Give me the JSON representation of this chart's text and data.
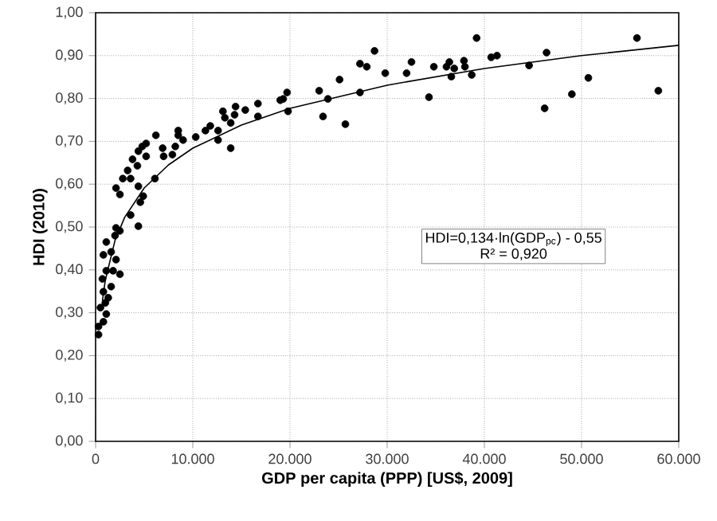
{
  "chart_data": {
    "type": "scatter",
    "xlabel": "GDP per capita (PPP) [US$, 2009]",
    "ylabel": "HDI (2010)",
    "xlim": [
      0,
      60000
    ],
    "ylim": [
      0,
      1
    ],
    "xticks": [
      0,
      {
        "value": 10000,
        "label": "10.000"
      },
      {
        "value": 20000,
        "label": "20.000"
      },
      {
        "value": 30000,
        "label": "30.000"
      },
      {
        "value": 40000,
        "label": "40.000"
      },
      {
        "value": 50000,
        "label": "50.000"
      },
      {
        "value": 60000,
        "label": "60.000"
      }
    ],
    "yticks": [
      {
        "value": 0,
        "label": "0,00"
      },
      {
        "value": 0.1,
        "label": "0,10"
      },
      {
        "value": 0.2,
        "label": "0,20"
      },
      {
        "value": 0.3,
        "label": "0,30"
      },
      {
        "value": 0.4,
        "label": "0,40"
      },
      {
        "value": 0.5,
        "label": "0,50"
      },
      {
        "value": 0.6,
        "label": "0,60"
      },
      {
        "value": 0.7,
        "label": "0,70"
      },
      {
        "value": 0.8,
        "label": "0,80"
      },
      {
        "value": 0.9,
        "label": "0,90"
      },
      {
        "value": 1,
        "label": "1,00"
      }
    ],
    "grid": true,
    "series": [
      {
        "marker": "circle",
        "color": "#000000",
        "x": [
          27900,
          28700,
          29800,
          32000,
          32500,
          34300,
          34800,
          36100,
          36400,
          36600,
          36900,
          37900,
          38000,
          38700,
          39200,
          40700,
          41300,
          44600,
          46200,
          46400,
          49000,
          50700,
          55700,
          57900,
          27200,
          25100,
          27200,
          23900,
          23000,
          23400,
          25700,
          19700,
          19300,
          19800,
          19000,
          16700,
          16700,
          14400,
          15400,
          14300,
          13100,
          13300,
          13900,
          11800,
          11300,
          12600,
          12600,
          13900,
          10300,
          8500,
          8500,
          9000,
          8200,
          7900,
          7000,
          6900,
          6200,
          5200,
          4800,
          4400,
          5200,
          3800,
          4300,
          6100,
          3300,
          2800,
          3600,
          2100,
          4400,
          4900,
          2500,
          4600,
          3600,
          4400,
          2500,
          2000,
          1100,
          800,
          1600,
          2100,
          2100,
          1100,
          2500,
          800,
          1300,
          500,
          1100,
          800,
          300,
          700,
          1600,
          1000,
          1800,
          300
        ],
        "values": [
          0.874,
          0.911,
          0.859,
          0.859,
          0.885,
          0.803,
          0.874,
          0.874,
          0.885,
          0.851,
          0.87,
          0.888,
          0.874,
          0.855,
          0.941,
          0.896,
          0.9,
          0.877,
          0.777,
          0.907,
          0.81,
          0.848,
          0.941,
          0.818,
          0.881,
          0.844,
          0.814,
          0.799,
          0.818,
          0.758,
          0.74,
          0.814,
          0.799,
          0.77,
          0.796,
          0.788,
          0.758,
          0.781,
          0.773,
          0.762,
          0.77,
          0.755,
          0.743,
          0.736,
          0.725,
          0.725,
          0.703,
          0.684,
          0.71,
          0.725,
          0.714,
          0.703,
          0.688,
          0.669,
          0.665,
          0.684,
          0.714,
          0.695,
          0.688,
          0.677,
          0.665,
          0.658,
          0.643,
          0.613,
          0.632,
          0.613,
          0.613,
          0.591,
          0.595,
          0.572,
          0.576,
          0.558,
          0.528,
          0.502,
          0.491,
          0.48,
          0.465,
          0.435,
          0.442,
          0.498,
          0.424,
          0.398,
          0.39,
          0.349,
          0.335,
          0.312,
          0.297,
          0.279,
          0.249,
          0.379,
          0.361,
          0.323,
          0.398,
          0.268
        ]
      },
      {
        "type": "line",
        "marker": "none",
        "color": "#000000",
        "x": [
          700,
          1000,
          2000,
          3000,
          5000,
          7500,
          10000,
          15000,
          20000,
          30000,
          40000,
          50000,
          60000
        ],
        "values": [
          0.328,
          0.376,
          0.469,
          0.523,
          0.591,
          0.645,
          0.684,
          0.738,
          0.777,
          0.831,
          0.87,
          0.9,
          0.924
        ]
      }
    ],
    "annotations": [
      "HDI=0,134·ln(GDP$_{pc}$) - 0,55",
      "R² = 0,920"
    ]
  }
}
